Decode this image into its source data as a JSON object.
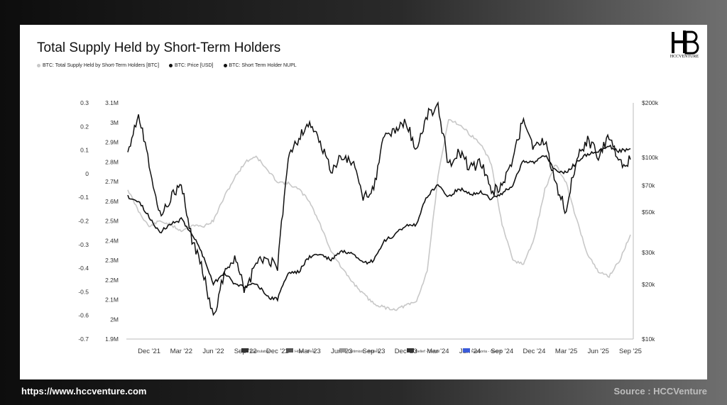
{
  "footer": {
    "website": "https://www.hccventure.com",
    "source": "Source : HCCVenture"
  },
  "logo": {
    "text": "HCCVENTURE"
  },
  "colors": {
    "supply": "#c8c8c8",
    "price": "#111111",
    "nupl": "#111111",
    "euphoria": "#3a5bd9"
  },
  "chart_data": {
    "type": "line",
    "title": "Total Supply Held by Short-Term Holders",
    "legend": [
      {
        "name": "BTC: Total Supply Held by Short-Term Holders [BTC]",
        "color": "#c8c8c8"
      },
      {
        "name": "BTC: Price [USD]",
        "color": "#111111"
      },
      {
        "name": "BTC: Short Term Holder NUPL",
        "color": "#111111"
      }
    ],
    "x_ticks": [
      "Dec '21",
      "Mar '22",
      "Jun '22",
      "Sep '22",
      "Dec '22",
      "Mar '23",
      "Jun '23",
      "Sep '23",
      "Dec '23",
      "Mar '24",
      "Jun '24",
      "Sep '24",
      "Dec '24",
      "Mar '25",
      "Jun '25",
      "Sep '25"
    ],
    "y_left_nupl_ticks": [
      "0.3",
      "0.2",
      "0.1",
      "0",
      "-0.1",
      "-0.2",
      "-0.3",
      "-0.4",
      "-0.5",
      "-0.6",
      "-0.7"
    ],
    "y_left_nupl_range": [
      -0.7,
      0.3
    ],
    "y_supply_ticks": [
      "3.1M",
      "3M",
      "2.9M",
      "2.8M",
      "2.7M",
      "2.6M",
      "2.5M",
      "2.4M",
      "2.3M",
      "2.2M",
      "2.1M",
      "2M",
      "1.9M"
    ],
    "y_supply_range": [
      1.9,
      3.1
    ],
    "y_right_price_ticks": [
      "$200k",
      "$100k",
      "$70k",
      "$50k",
      "$30k",
      "$20k",
      "$10k"
    ],
    "y_right_price_range": [
      10000,
      200000
    ],
    "y_right_scale": "log",
    "zone_legend": [
      "Capitulation",
      "Hope - Fear",
      "Optimism - Anxiety",
      "Belief - Denial",
      "Euphoria - Greed"
    ],
    "x": [
      "2021-10",
      "2021-11",
      "2021-12",
      "2022-01",
      "2022-02",
      "2022-03",
      "2022-04",
      "2022-05",
      "2022-06",
      "2022-07",
      "2022-08",
      "2022-09",
      "2022-10",
      "2022-11",
      "2022-12",
      "2023-01",
      "2023-02",
      "2023-03",
      "2023-04",
      "2023-05",
      "2023-06",
      "2023-07",
      "2023-08",
      "2023-09",
      "2023-10",
      "2023-11",
      "2023-12",
      "2024-01",
      "2024-02",
      "2024-03",
      "2024-04",
      "2024-05",
      "2024-06",
      "2024-07",
      "2024-08",
      "2024-09",
      "2024-10",
      "2024-11",
      "2024-12",
      "2025-01",
      "2025-02",
      "2025-03",
      "2025-04",
      "2025-05",
      "2025-06",
      "2025-07",
      "2025-08",
      "2025-09"
    ],
    "series": [
      {
        "name": "BTC: Total Supply Held by Short-Term Holders [BTC]",
        "axis": "supply",
        "values": [
          2.66,
          2.55,
          2.47,
          2.5,
          2.48,
          2.45,
          2.48,
          2.47,
          2.5,
          2.62,
          2.72,
          2.8,
          2.83,
          2.76,
          2.7,
          2.69,
          2.66,
          2.6,
          2.48,
          2.35,
          2.26,
          2.19,
          2.13,
          2.08,
          2.06,
          2.05,
          2.07,
          2.09,
          2.25,
          2.72,
          3.02,
          2.99,
          2.94,
          2.89,
          2.79,
          2.48,
          2.3,
          2.28,
          2.41,
          2.66,
          2.79,
          2.69,
          2.5,
          2.33,
          2.24,
          2.22,
          2.3,
          2.43
        ]
      },
      {
        "name": "BTC: Price [USD]",
        "axis": "price",
        "values": [
          61000,
          57000,
          47000,
          38500,
          43000,
          45500,
          38000,
          29000,
          20000,
          23300,
          20000,
          19400,
          20500,
          17000,
          16600,
          23100,
          23500,
          28500,
          29300,
          27200,
          30500,
          29200,
          26000,
          27000,
          34500,
          37700,
          42300,
          42600,
          61000,
          71300,
          60600,
          67500,
          62700,
          64600,
          59000,
          63300,
          70200,
          96400,
          93400,
          102400,
          84300,
          82500,
          94200,
          104600,
          107100,
          115700,
          108200,
          112000
        ]
      },
      {
        "name": "BTC: Short Term Holder NUPL",
        "axis": "nupl",
        "values": [
          0.1,
          0.26,
          0.05,
          -0.18,
          -0.1,
          -0.05,
          -0.28,
          -0.4,
          -0.62,
          -0.42,
          -0.35,
          -0.5,
          -0.38,
          -0.36,
          -0.4,
          0.08,
          0.15,
          0.22,
          0.12,
          0.02,
          0.07,
          0.05,
          -0.1,
          -0.06,
          0.16,
          0.18,
          0.22,
          0.1,
          0.25,
          0.28,
          0.04,
          0.1,
          0.02,
          0.05,
          -0.08,
          -0.05,
          0.05,
          0.24,
          0.1,
          0.14,
          -0.04,
          -0.16,
          0.08,
          0.14,
          0.08,
          0.16,
          0.04,
          0.06
        ]
      }
    ]
  }
}
